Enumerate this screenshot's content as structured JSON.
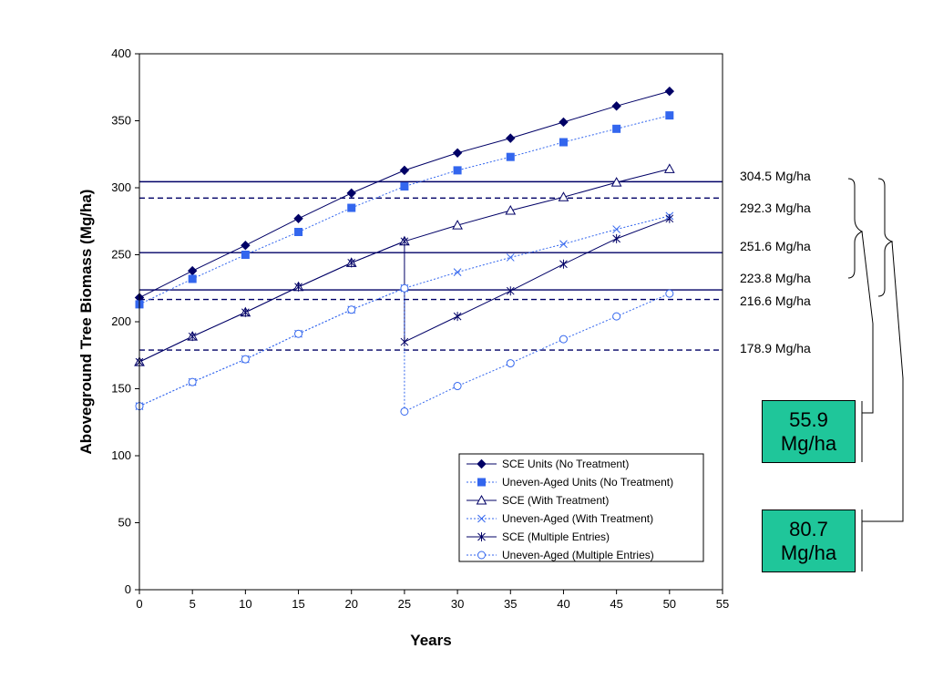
{
  "chart_data": {
    "type": "line",
    "xlabel": "Years",
    "ylabel": "Aboveground Tree Biomass (Mg/ha)",
    "xlim": [
      0,
      55
    ],
    "ylim": [
      0,
      400
    ],
    "xticks": [
      0,
      5,
      10,
      15,
      20,
      25,
      30,
      35,
      40,
      45,
      50,
      55
    ],
    "yticks": [
      0,
      50,
      100,
      150,
      200,
      250,
      300,
      350,
      400
    ],
    "grid": false,
    "legend_position": "bottom-right",
    "series": [
      {
        "name": "SCE Units (No Treatment)",
        "color": "#000066",
        "line": "solid",
        "marker": "diamond",
        "x": [
          0,
          5,
          10,
          15,
          20,
          25,
          30,
          35,
          40,
          45,
          50
        ],
        "y": [
          218,
          238,
          257,
          277,
          296,
          313,
          326,
          337,
          349,
          361,
          372
        ]
      },
      {
        "name": "Uneven-Aged Units (No Treatment)",
        "color": "#3366ee",
        "line": "dotted",
        "marker": "square",
        "x": [
          0,
          5,
          10,
          15,
          20,
          25,
          30,
          35,
          40,
          45,
          50
        ],
        "y": [
          213,
          232,
          250,
          267,
          285,
          301,
          313,
          323,
          334,
          344,
          354
        ]
      },
      {
        "name": "SCE (With Treatment)",
        "color": "#000066",
        "line": "solid",
        "marker": "triangle",
        "x": [
          0,
          5,
          10,
          15,
          20,
          25,
          30,
          35,
          40,
          45,
          50
        ],
        "y": [
          170,
          189,
          207,
          226,
          244,
          260,
          272,
          283,
          293,
          304,
          314
        ]
      },
      {
        "name": "Uneven-Aged (With Treatment)",
        "color": "#3366ee",
        "line": "dotted",
        "marker": "x",
        "x": [
          0,
          5,
          10,
          15,
          20,
          25,
          30,
          35,
          40,
          45,
          50
        ],
        "y": [
          137,
          155,
          172,
          191,
          209,
          225,
          237,
          248,
          258,
          269,
          279
        ]
      },
      {
        "name": "SCE (Multiple Entries)",
        "color": "#000066",
        "line": "solid",
        "marker": "star",
        "x": [
          0,
          5,
          10,
          15,
          20,
          25,
          25,
          30,
          35,
          40,
          45,
          50
        ],
        "y": [
          170,
          189,
          207,
          226,
          244,
          260,
          185,
          204,
          223,
          243,
          262,
          277
        ]
      },
      {
        "name": "Uneven-Aged (Multiple Entries)",
        "color": "#3366ee",
        "line": "dotted",
        "marker": "circle",
        "x": [
          0,
          5,
          10,
          15,
          20,
          25,
          25,
          30,
          35,
          40,
          45,
          50
        ],
        "y": [
          137,
          155,
          172,
          191,
          209,
          225,
          133,
          152,
          169,
          187,
          204,
          221
        ]
      }
    ],
    "reference_lines": [
      {
        "y": 304.5,
        "label": "304.5 Mg/ha",
        "style": "solid"
      },
      {
        "y": 292.3,
        "label": "292.3 Mg/ha",
        "style": "dashed"
      },
      {
        "y": 251.6,
        "label": "251.6 Mg/ha",
        "style": "solid"
      },
      {
        "y": 223.8,
        "label": "223.8 Mg/ha",
        "style": "solid"
      },
      {
        "y": 216.6,
        "label": "216.6 Mg/ha",
        "style": "dashed"
      },
      {
        "y": 178.9,
        "label": "178.9 Mg/ha",
        "style": "dashed"
      }
    ],
    "reference_line_color": "#000066",
    "callouts": [
      {
        "value": "55.9",
        "unit": "Mg/ha"
      },
      {
        "value": "80.7",
        "unit": "Mg/ha"
      }
    ],
    "callout_color": "#1fc69a"
  }
}
